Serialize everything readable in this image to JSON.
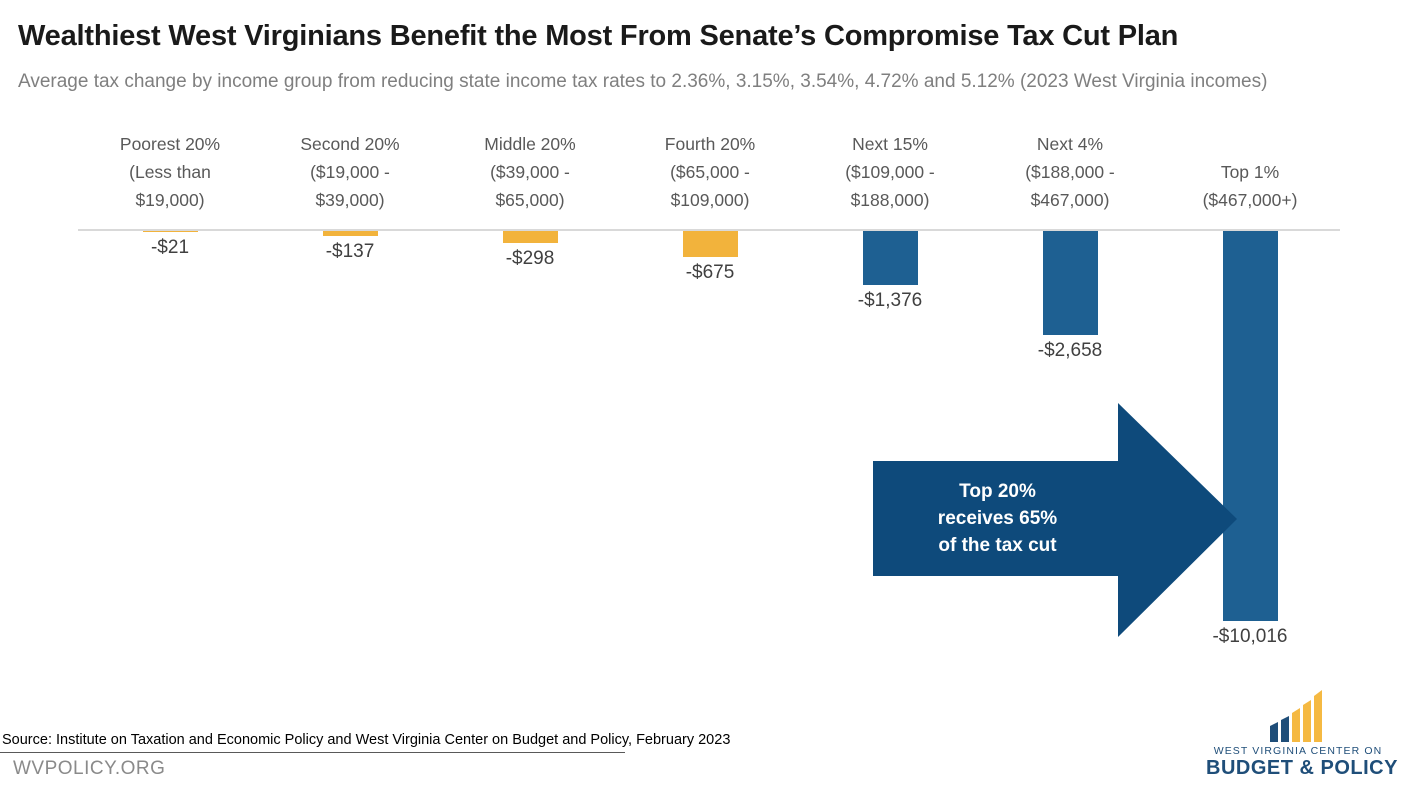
{
  "header": {
    "title": "Wealthiest West Virginians Benefit the Most From Senate’s Compromise Tax Cut Plan",
    "subtitle": "Average tax change by income group from reducing state income tax rates to 2.36%, 3.15%, 3.54%, 4.72% and 5.12% (2023 West Virginia incomes)"
  },
  "chart_data": {
    "type": "bar",
    "title": "Wealthiest West Virginians Benefit the Most From Senate’s Compromise Tax Cut Plan",
    "subtitle": "Average tax change by income group from reducing state income tax rates to 2.36%, 3.15%, 3.54%, 4.72% and 5.12% (2023 West Virginia incomes)",
    "categories": [
      "Poorest 20% (Less than $19,000)",
      "Second 20% ($19,000 - $39,000)",
      "Middle 20% ($39,000 - $65,000)",
      "Fourth 20% ($65,000 - $109,000)",
      "Next 15% ($109,000 - $188,000)",
      "Next 4% ($188,000 - $467,000)",
      "Top 1% ($467,000+)"
    ],
    "category_lines": [
      [
        "Poorest 20%",
        "(Less than",
        "$19,000)"
      ],
      [
        "Second 20%",
        "($19,000 -",
        "$39,000)"
      ],
      [
        "Middle 20%",
        "($39,000 -",
        "$65,000)"
      ],
      [
        "Fourth 20%",
        "($65,000 -",
        "$109,000)"
      ],
      [
        "Next 15%",
        "($109,000 -",
        "$188,000)"
      ],
      [
        "Next 4%",
        "($188,000 -",
        "$467,000)"
      ],
      [
        "Top 1%",
        "($467,000+)"
      ]
    ],
    "values": [
      -21,
      -137,
      -298,
      -675,
      -1376,
      -2658,
      -10016
    ],
    "value_labels": [
      "-$21",
      "-$137",
      "-$298",
      "-$675",
      "-$1,376",
      "-$2,658",
      "-$10,016"
    ],
    "bar_colors": [
      "#F2B33C",
      "#F2B33C",
      "#F2B33C",
      "#F2B33C",
      "#1E6092",
      "#1E6092",
      "#1E6092"
    ],
    "xlabel": "",
    "ylabel": "",
    "ylim": [
      -10016,
      0
    ],
    "grid": false,
    "legend": false,
    "annotation": {
      "lines": [
        "Top 20%",
        "receives 65%",
        "of the tax cut"
      ],
      "shape": "right-arrow",
      "color": "#0E4A7B"
    }
  },
  "footer": {
    "source": "Source: Institute on Taxation and Economic Policy and West Virginia Center on Budget and Policy, February 2023",
    "site": "WVPOLICY.ORG"
  },
  "logo": {
    "line1": "WEST VIRGINIA CENTER ON",
    "line2": "BUDGET & POLICY",
    "blue": "#1F4E79",
    "gold": "#F5B942"
  },
  "colors": {
    "bar_yellow": "#F2B33C",
    "bar_blue": "#1E6092",
    "arrow_blue": "#0E4A7B",
    "axis_gray": "#D9D9D9",
    "subtitle_gray": "#7F7F7F",
    "label_gray": "#595959",
    "value_gray": "#404040"
  }
}
